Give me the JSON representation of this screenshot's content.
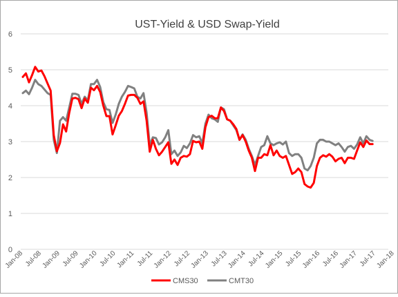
{
  "chart_data": {
    "type": "line",
    "title": "UST-Yield & USD Swap-Yield",
    "xlabel": "",
    "ylabel": "",
    "ylim": [
      0,
      6
    ],
    "yticks": [
      0,
      1,
      2,
      3,
      4,
      5,
      6
    ],
    "x_tick_labels": [
      "Jan-08",
      "Jul-08",
      "Jan-09",
      "Jul-09",
      "Jan-10",
      "Jul-10",
      "Jan-11",
      "Jul-11",
      "Jan-12",
      "Jul-12",
      "Jan-13",
      "Jul-13",
      "Jan-14",
      "Jul-14",
      "Jan-15",
      "Jul-15",
      "Jan-16",
      "Jul-16",
      "Jan-17",
      "Jul-17",
      "Jan-18"
    ],
    "grid": "horizontal",
    "legend_position": "bottom",
    "colors": {
      "CMS30": "#ff0000",
      "CMT30": "#808080",
      "grid": "#d9d9d9",
      "border": "#a6a6a6",
      "text": "#595959"
    },
    "x_start": "Jan-08",
    "x_step": "1 month",
    "series": [
      {
        "name": "CMS30",
        "values": [
          4.8,
          4.9,
          4.65,
          4.85,
          5.08,
          4.95,
          4.98,
          4.82,
          4.62,
          4.42,
          3.18,
          2.73,
          2.96,
          3.48,
          3.28,
          3.8,
          4.2,
          4.22,
          4.18,
          3.93,
          4.2,
          4.08,
          4.5,
          4.43,
          4.55,
          4.38,
          4.0,
          3.71,
          3.71,
          3.2,
          3.45,
          3.72,
          3.85,
          4.05,
          4.28,
          4.3,
          4.3,
          4.22,
          4.05,
          4.12,
          3.58,
          2.72,
          3.05,
          2.8,
          2.62,
          2.72,
          2.85,
          2.98,
          2.38,
          2.5,
          2.35,
          2.55,
          2.6,
          2.58,
          2.65,
          3.02,
          2.98,
          3.0,
          2.8,
          3.4,
          3.68,
          3.72,
          3.65,
          3.65,
          3.95,
          3.85,
          3.62,
          3.58,
          3.48,
          3.35,
          3.05,
          3.18,
          3.0,
          2.75,
          2.55,
          2.18,
          2.55,
          2.55,
          2.65,
          2.62,
          2.9,
          2.62,
          2.75,
          2.6,
          2.55,
          2.6,
          2.35,
          2.1,
          2.15,
          2.25,
          2.15,
          1.82,
          1.75,
          1.72,
          1.85,
          2.32,
          2.55,
          2.62,
          2.58,
          2.65,
          2.58,
          2.45,
          2.52,
          2.55,
          2.4,
          2.55,
          2.55,
          2.52,
          2.75,
          2.98,
          2.85,
          3.03,
          2.93,
          2.93
        ]
      },
      {
        "name": "CMT30",
        "values": [
          4.35,
          4.42,
          4.32,
          4.5,
          4.72,
          4.6,
          4.55,
          4.45,
          4.35,
          4.3,
          3.05,
          2.68,
          3.58,
          3.68,
          3.58,
          3.95,
          4.33,
          4.33,
          4.3,
          4.05,
          4.25,
          4.15,
          4.6,
          4.6,
          4.72,
          4.52,
          4.1,
          3.9,
          3.88,
          3.52,
          3.75,
          4.05,
          4.25,
          4.38,
          4.55,
          4.52,
          4.48,
          4.25,
          4.2,
          4.35,
          3.8,
          2.9,
          3.12,
          3.1,
          2.92,
          2.98,
          3.12,
          3.32,
          2.65,
          2.75,
          2.6,
          2.7,
          2.88,
          2.82,
          2.95,
          3.18,
          3.12,
          3.15,
          2.95,
          3.5,
          3.75,
          3.65,
          3.62,
          3.55,
          3.95,
          3.9,
          3.62,
          3.58,
          3.45,
          3.32,
          3.05,
          3.2,
          3.05,
          2.8,
          2.6,
          2.35,
          2.6,
          2.85,
          2.9,
          3.15,
          2.95,
          2.9,
          2.95,
          2.98,
          2.92,
          3.0,
          2.68,
          2.6,
          2.65,
          2.65,
          2.55,
          2.25,
          2.2,
          2.32,
          2.55,
          2.95,
          3.05,
          3.05,
          3.0,
          3.0,
          2.95,
          2.9,
          2.95,
          2.85,
          2.72,
          2.85,
          2.88,
          2.8,
          2.92,
          3.12,
          2.95,
          3.15,
          3.05,
          3.02
        ]
      }
    ]
  }
}
